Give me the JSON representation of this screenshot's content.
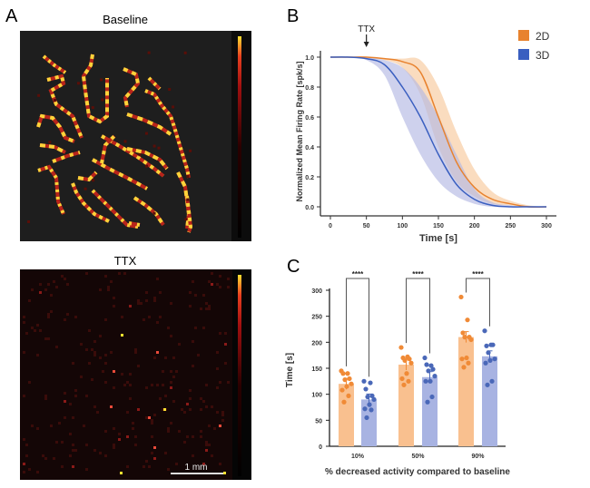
{
  "panel_labels": {
    "a": "A",
    "b": "B",
    "c": "C"
  },
  "panel_a": {
    "baseline_title": "Baseline",
    "ttx_title": "TTX",
    "scale_bar_label": "1 mm",
    "colormap": [
      "#000000",
      "#8b0000",
      "#e03020",
      "#ffe030"
    ]
  },
  "chart_data": [
    {
      "type": "line",
      "panel": "B",
      "xlabel": "Time [s]",
      "ylabel": "Normalized Mean Firing Rate [spk/s]",
      "xlim": [
        0,
        300
      ],
      "ylim": [
        0,
        1.0
      ],
      "xticks": [
        "0",
        "50",
        "100",
        "150",
        "200",
        "250",
        "300"
      ],
      "yticks": [
        "0.0",
        "0.2",
        "0.4",
        "0.6",
        "0.8",
        "1.0"
      ],
      "annotation": {
        "label": "TTX",
        "x": 50
      },
      "legend_position": "top-right",
      "x": [
        0,
        25,
        50,
        75,
        100,
        125,
        150,
        175,
        200,
        225,
        250,
        275,
        300
      ],
      "series": [
        {
          "name": "2D",
          "color": "#e8822e",
          "band_color": "#f8c99c",
          "values": [
            1,
            1,
            1,
            0.99,
            0.97,
            0.9,
            0.6,
            0.3,
            0.13,
            0.05,
            0.02,
            0.0,
            0.0
          ],
          "upper": [
            1,
            1,
            1,
            0.99,
            0.99,
            0.98,
            0.8,
            0.5,
            0.25,
            0.1,
            0.04,
            0.01,
            0.0
          ],
          "lower": [
            1,
            1,
            1,
            0.98,
            0.93,
            0.75,
            0.4,
            0.17,
            0.07,
            0.02,
            0.01,
            0.0,
            0.0
          ]
        },
        {
          "name": "3D",
          "color": "#3a5fc0",
          "band_color": "#b3b8e4",
          "values": [
            1,
            1,
            0.99,
            0.95,
            0.8,
            0.6,
            0.35,
            0.15,
            0.05,
            0.01,
            0.0,
            0.0,
            0.0
          ],
          "upper": [
            1,
            1,
            1,
            0.98,
            0.93,
            0.8,
            0.6,
            0.35,
            0.12,
            0.03,
            0.01,
            0.0,
            0.0
          ],
          "lower": [
            1,
            1,
            0.98,
            0.88,
            0.6,
            0.35,
            0.17,
            0.07,
            0.02,
            0.0,
            0.0,
            0.0,
            0.0
          ]
        }
      ]
    },
    {
      "type": "bar",
      "panel": "C",
      "xlabel": "% decreased activity compared to baseline",
      "ylabel": "Time [s]",
      "ylim": [
        0,
        300
      ],
      "yticks": [
        "0",
        "50",
        "100",
        "150",
        "200",
        "250",
        "300"
      ],
      "categories": [
        "10%",
        "50%",
        "90%"
      ],
      "significance": [
        "****",
        "****",
        "****"
      ],
      "series": [
        {
          "name": "2D",
          "bar_color": "#f9c08f",
          "point_color": "#f08a36",
          "values": [
            120,
            157,
            210
          ],
          "points": [
            [
              145,
              140,
              140,
              130,
              128,
              120,
              115,
              108,
              97,
              85
            ],
            [
              190,
              172,
              170,
              168,
              165,
              160,
              140,
              130,
              125,
              118
            ],
            [
              287,
              243,
              218,
              210,
              210,
              205,
              170,
              168,
              160,
              152
            ]
          ]
        },
        {
          "name": "3D",
          "bar_color": "#a8b3e2",
          "point_color": "#4a68b8",
          "values": [
            90,
            133,
            173
          ],
          "points": [
            [
              125,
              122,
              110,
              97,
              95,
              90,
              80,
              72,
              70,
              55
            ],
            [
              170,
              155,
              157,
              148,
              145,
              135,
              125,
              125,
              95,
              85
            ],
            [
              222,
              195,
              193,
              195,
              180,
              168,
              165,
              160,
              125,
              118
            ]
          ]
        }
      ]
    }
  ]
}
